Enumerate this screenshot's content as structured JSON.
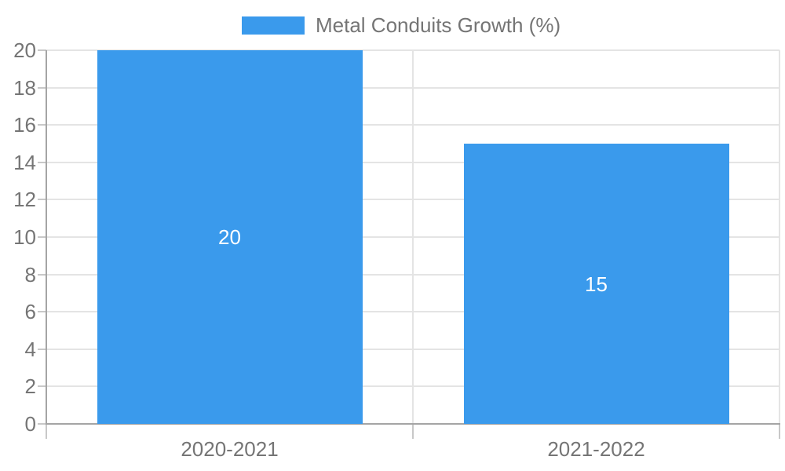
{
  "chart_data": {
    "type": "bar",
    "title": "",
    "legend_label": "Metal Conduits Growth (%)",
    "legend_position": "top",
    "categories": [
      "2020-2021",
      "2021-2022"
    ],
    "series": [
      {
        "name": "Metal Conduits Growth (%)",
        "values": [
          20,
          15
        ]
      }
    ],
    "value_labels": [
      "20",
      "15"
    ],
    "xlabel": "",
    "ylabel": "",
    "ylim": [
      0,
      20
    ],
    "y_tick_step": 2,
    "y_ticks": [
      0,
      2,
      4,
      6,
      8,
      10,
      12,
      14,
      16,
      18,
      20
    ],
    "grid": true,
    "colors": {
      "bar": "#3A9AEC",
      "axis_text": "#757575",
      "grid_line": "#E4E4E4",
      "axis_line": "#A5A5A5",
      "tick_mark": "#C8C8C8",
      "value_label": "#FFFFFF",
      "background": "#FFFFFF"
    }
  }
}
